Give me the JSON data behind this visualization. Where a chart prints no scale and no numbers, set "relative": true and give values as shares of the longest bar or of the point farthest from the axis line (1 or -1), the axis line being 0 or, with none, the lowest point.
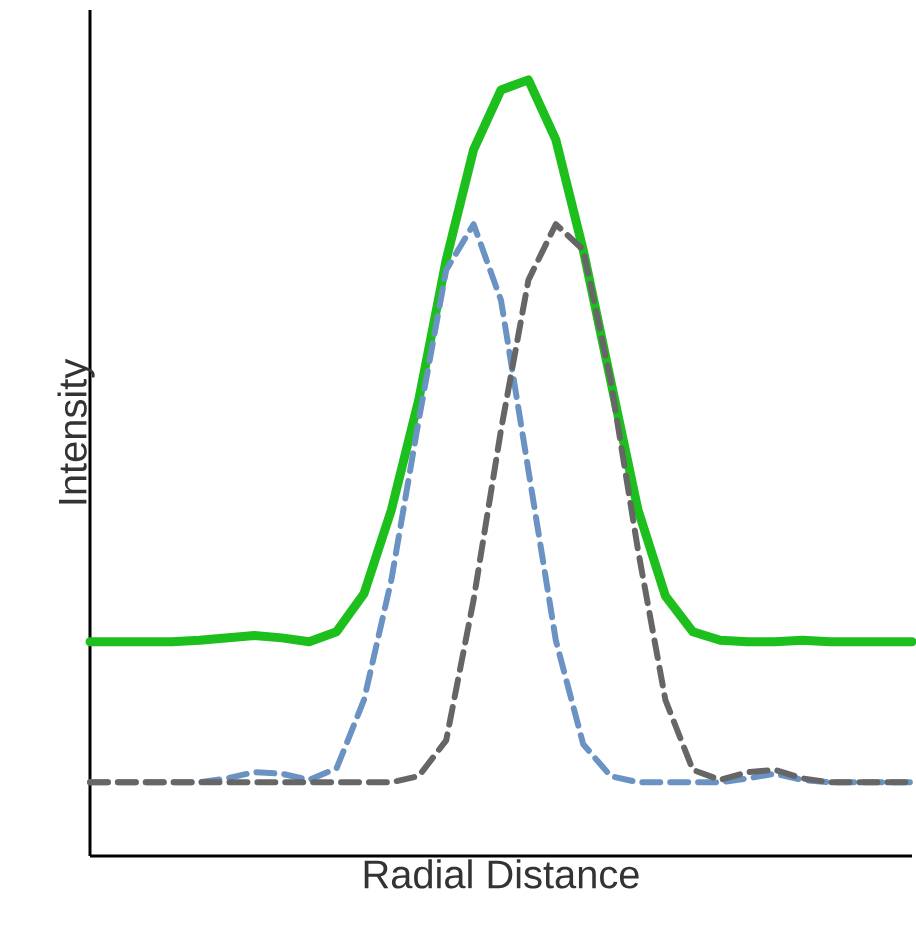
{
  "chart_data": {
    "type": "line",
    "xlabel": "Radial Distance",
    "ylabel": "Intensity",
    "relative": true,
    "marker": "none",
    "categories": [
      null,
      null,
      null,
      null,
      null,
      null,
      null,
      null,
      null,
      null,
      null,
      null,
      null,
      null,
      null,
      null,
      null,
      null,
      null,
      null,
      null,
      null,
      null,
      null,
      null,
      null,
      null,
      null,
      null,
      null,
      null
    ],
    "series": [
      {
        "color": "#1cbf1c",
        "line_style": "solid",
        "values": [
          0.276,
          0.276,
          0.276,
          0.276,
          0.278,
          0.281,
          0.284,
          0.281,
          0.276,
          0.289,
          0.338,
          0.446,
          0.588,
          0.768,
          0.91,
          0.987,
          1.0,
          0.923,
          0.781,
          0.613,
          0.446,
          0.335,
          0.289,
          0.278,
          0.276,
          0.276,
          0.278,
          0.276,
          0.276,
          0.276,
          0.276
        ]
      },
      {
        "color": "#6a93c4",
        "line_style": "dashed",
        "values": [
          0.095,
          0.095,
          0.095,
          0.095,
          0.095,
          0.1,
          0.108,
          0.106,
          0.098,
          0.113,
          0.201,
          0.356,
          0.562,
          0.755,
          0.814,
          0.716,
          0.497,
          0.278,
          0.144,
          0.103,
          0.095,
          0.095,
          0.095,
          0.095,
          0.1,
          0.106,
          0.098,
          0.095,
          0.095,
          0.095,
          0.095
        ]
      },
      {
        "color": "#666666",
        "line_style": "dashed",
        "values": [
          0.095,
          0.095,
          0.095,
          0.095,
          0.095,
          0.095,
          0.095,
          0.095,
          0.095,
          0.095,
          0.095,
          0.095,
          0.103,
          0.149,
          0.33,
          0.549,
          0.742,
          0.814,
          0.781,
          0.613,
          0.394,
          0.201,
          0.111,
          0.098,
          0.108,
          0.111,
          0.1,
          0.095,
          0.095,
          0.095,
          0.095
        ]
      }
    ]
  }
}
